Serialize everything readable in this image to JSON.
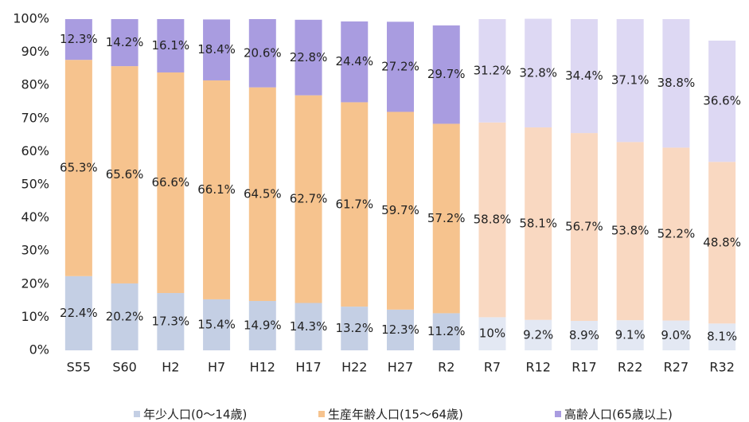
{
  "chart_data": {
    "type": "stacked_bar",
    "categories": [
      "S55",
      "S60",
      "H2",
      "H7",
      "H12",
      "H17",
      "H22",
      "H27",
      "R2",
      "R7",
      "R12",
      "R17",
      "R22",
      "R27",
      "R32"
    ],
    "ylim": [
      0,
      100
    ],
    "yticks": [
      {
        "value": 0,
        "label": "0%"
      },
      {
        "value": 10,
        "label": "10%"
      },
      {
        "value": 20,
        "label": "20%"
      },
      {
        "value": 30,
        "label": "30%"
      },
      {
        "value": 40,
        "label": "40%"
      },
      {
        "value": 50,
        "label": "50%"
      },
      {
        "value": 60,
        "label": "60%"
      },
      {
        "value": 70,
        "label": "70%"
      },
      {
        "value": 80,
        "label": "80%"
      },
      {
        "value": 90,
        "label": "90%"
      },
      {
        "value": 100,
        "label": "100%"
      }
    ],
    "series": [
      {
        "name": "年少人口(0～14歳)",
        "color": "#c4cfe4",
        "colors": [
          "#c4cfe4",
          "#c4cfe4",
          "#c4cfe4",
          "#c4cfe4",
          "#c4cfe4",
          "#c4cfe4",
          "#c4cfe4",
          "#c4cfe4",
          "#c4cfe4",
          "#e3e8f3",
          "#e3e8f3",
          "#e3e8f3",
          "#e3e8f3",
          "#e3e8f3",
          "#e3e8f3"
        ],
        "values": [
          22.4,
          20.2,
          17.3,
          15.4,
          14.9,
          14.3,
          13.2,
          12.3,
          11.2,
          10,
          9.2,
          8.9,
          9.1,
          9.0,
          8.1
        ],
        "value_labels": [
          "22.4%",
          "20.2%",
          "17.3%",
          "15.4%",
          "14.9%",
          "14.3%",
          "13.2%",
          "12.3%",
          "11.2%",
          "10%",
          "9.2%",
          "8.9%",
          "9.1%",
          "9.0%",
          "8.1%"
        ]
      },
      {
        "name": "生産年齢人口(15～64歳)",
        "color": "#f6c38e",
        "colors": [
          "#f6c38e",
          "#f6c38e",
          "#f6c38e",
          "#f6c38e",
          "#f6c38e",
          "#f6c38e",
          "#f6c38e",
          "#f6c38e",
          "#f6c38e",
          "#f9d8c1",
          "#f9d8c1",
          "#f9d8c1",
          "#f9d8c1",
          "#f9d8c1",
          "#f9d8c1"
        ],
        "values": [
          65.3,
          65.6,
          66.6,
          66.1,
          64.5,
          62.7,
          61.7,
          59.7,
          57.2,
          58.8,
          58.1,
          56.7,
          53.8,
          52.2,
          48.8
        ],
        "value_labels": [
          "65.3%",
          "65.6%",
          "66.6%",
          "66.1%",
          "64.5%",
          "62.7%",
          "61.7%",
          "59.7%",
          "57.2%",
          "58.8%",
          "58.1%",
          "56.7%",
          "53.8%",
          "52.2%",
          "48.8%"
        ]
      },
      {
        "name": "高齢人口(65歳以上)",
        "color": "#a99ce0",
        "colors": [
          "#a99ce0",
          "#a99ce0",
          "#a99ce0",
          "#a99ce0",
          "#a99ce0",
          "#a99ce0",
          "#a99ce0",
          "#a99ce0",
          "#a99ce0",
          "#ddd8f3",
          "#ddd8f3",
          "#ddd8f3",
          "#ddd8f3",
          "#ddd8f3",
          "#ddd8f3"
        ],
        "values": [
          12.3,
          14.2,
          16.1,
          18.4,
          20.6,
          22.8,
          24.4,
          27.2,
          29.7,
          31.2,
          32.8,
          34.4,
          37.1,
          38.8,
          36.6
        ],
        "value_labels": [
          "12.3%",
          "14.2%",
          "16.1%",
          "18.4%",
          "20.6%",
          "22.8%",
          "24.4%",
          "27.2%",
          "29.7%",
          "31.2%",
          "32.8%",
          "34.4%",
          "37.1%",
          "38.8%",
          "36.6%"
        ]
      }
    ]
  }
}
